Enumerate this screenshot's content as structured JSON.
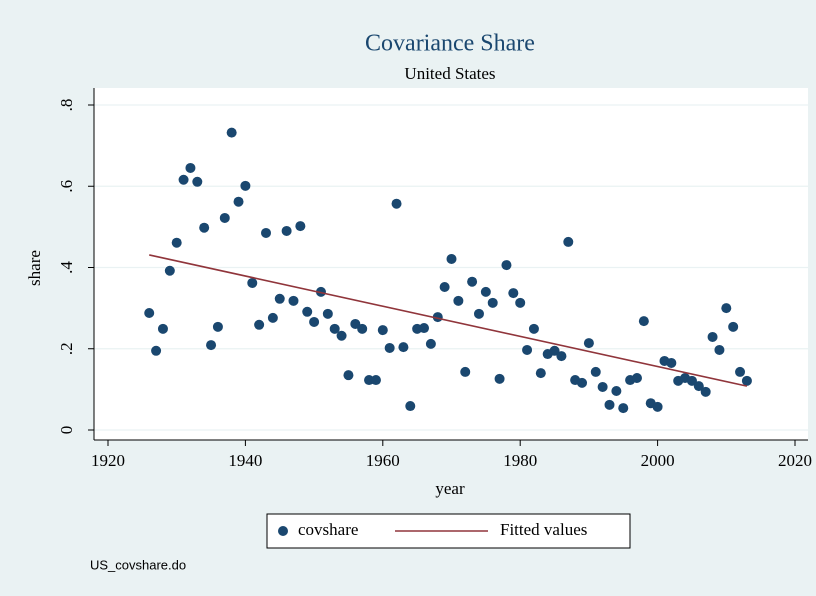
{
  "chart_data": {
    "type": "scatter",
    "title": "Covariance Share",
    "subtitle": "United States",
    "xlabel": "year",
    "ylabel": "share",
    "note": "US_covshare.do",
    "xlim": [
      1920,
      2020
    ],
    "xticks": [
      1920,
      1940,
      1960,
      1980,
      2000,
      2020
    ],
    "ylim": [
      0,
      0.8
    ],
    "yticks": [
      0,
      {
        "value": 0.2,
        "label": ".2"
      },
      {
        "value": 0.4,
        "label": ".4"
      },
      {
        "value": 0.6,
        "label": ".6"
      },
      {
        "value": 0.8,
        "label": ".8"
      }
    ],
    "grid": true,
    "legend": "bottom",
    "series": [
      {
        "name": "covshare",
        "color": "#1a476f",
        "type": "scatter",
        "x": [
          1926,
          1927,
          1928,
          1929,
          1930,
          1931,
          1932,
          1933,
          1934,
          1935,
          1936,
          1937,
          1938,
          1939,
          1940,
          1941,
          1942,
          1943,
          1944,
          1945,
          1946,
          1947,
          1948,
          1949,
          1950,
          1951,
          1952,
          1953,
          1954,
          1955,
          1956,
          1957,
          1958,
          1959,
          1960,
          1961,
          1962,
          1963,
          1964,
          1965,
          1966,
          1967,
          1968,
          1969,
          1970,
          1971,
          1972,
          1973,
          1974,
          1975,
          1976,
          1977,
          1978,
          1979,
          1980,
          1981,
          1982,
          1983,
          1984,
          1985,
          1986,
          1987,
          1988,
          1989,
          1990,
          1991,
          1992,
          1993,
          1994,
          1995,
          1996,
          1997,
          1998,
          1999,
          2000,
          2001,
          2002,
          2003,
          2004,
          2005,
          2006,
          2007,
          2008,
          2009,
          2010,
          2011,
          2012,
          2013
        ],
        "values": [
          0.288,
          0.195,
          0.249,
          0.392,
          0.461,
          0.616,
          0.645,
          0.611,
          0.498,
          0.209,
          0.254,
          0.522,
          0.732,
          0.562,
          0.601,
          0.362,
          0.259,
          0.485,
          0.276,
          0.323,
          0.49,
          0.318,
          0.502,
          0.291,
          0.266,
          0.34,
          0.286,
          0.249,
          0.232,
          0.135,
          0.261,
          0.249,
          0.123,
          0.123,
          0.246,
          0.202,
          0.557,
          0.204,
          0.059,
          0.249,
          0.251,
          0.212,
          0.278,
          0.352,
          0.421,
          0.318,
          0.143,
          0.365,
          0.286,
          0.34,
          0.313,
          0.126,
          0.406,
          0.337,
          0.313,
          0.197,
          0.249,
          0.14,
          0.187,
          0.195,
          0.182,
          0.463,
          0.123,
          0.116,
          0.214,
          0.143,
          0.106,
          0.062,
          0.096,
          0.054,
          0.123,
          0.128,
          0.268,
          0.066,
          0.057,
          0.17,
          0.165,
          0.121,
          0.128,
          0.121,
          0.108,
          0.094,
          0.229,
          0.197,
          0.3,
          0.254,
          0.143,
          0.121
        ]
      },
      {
        "name": "Fitted values",
        "color": "#90353b",
        "type": "line",
        "x": [
          1926,
          2013
        ],
        "values": [
          0.431,
          0.108
        ]
      }
    ]
  }
}
